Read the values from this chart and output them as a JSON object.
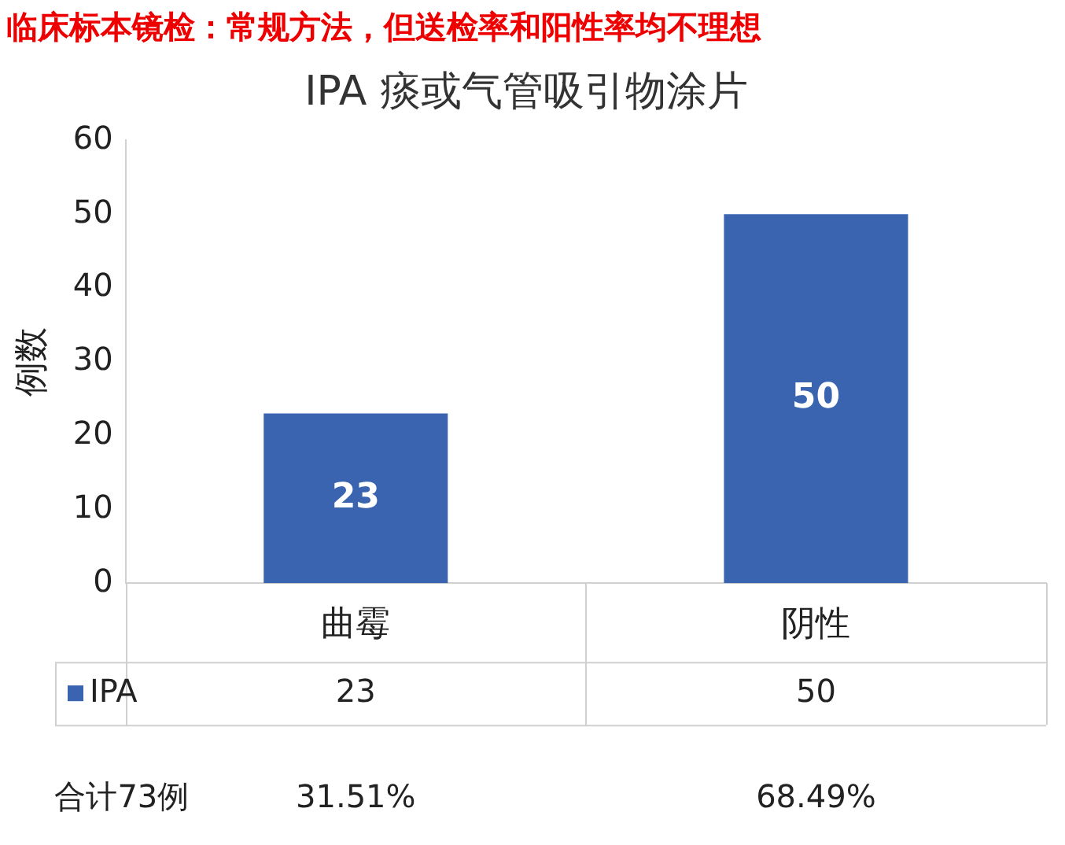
{
  "chart_data": {
    "type": "bar",
    "title": "临床标本镜检：常规方法，但送检率和阳性率均不理想",
    "subtitle": "IPA 痰或气管吸引物涂片",
    "ylabel": "例数",
    "categories": [
      "曲霉",
      "阴性"
    ],
    "series": [
      {
        "name": "IPA",
        "color": "#3a64b0",
        "values": [
          23,
          50
        ]
      }
    ],
    "ylim": [
      0,
      60
    ],
    "yticks": [
      0,
      10,
      20,
      30,
      40,
      50,
      60
    ],
    "grid": false,
    "legend": "bottom",
    "data_labels": true,
    "annotations": [
      "23",
      "50",
      "合计73例",
      "31.51%",
      "68.49%"
    ]
  }
}
